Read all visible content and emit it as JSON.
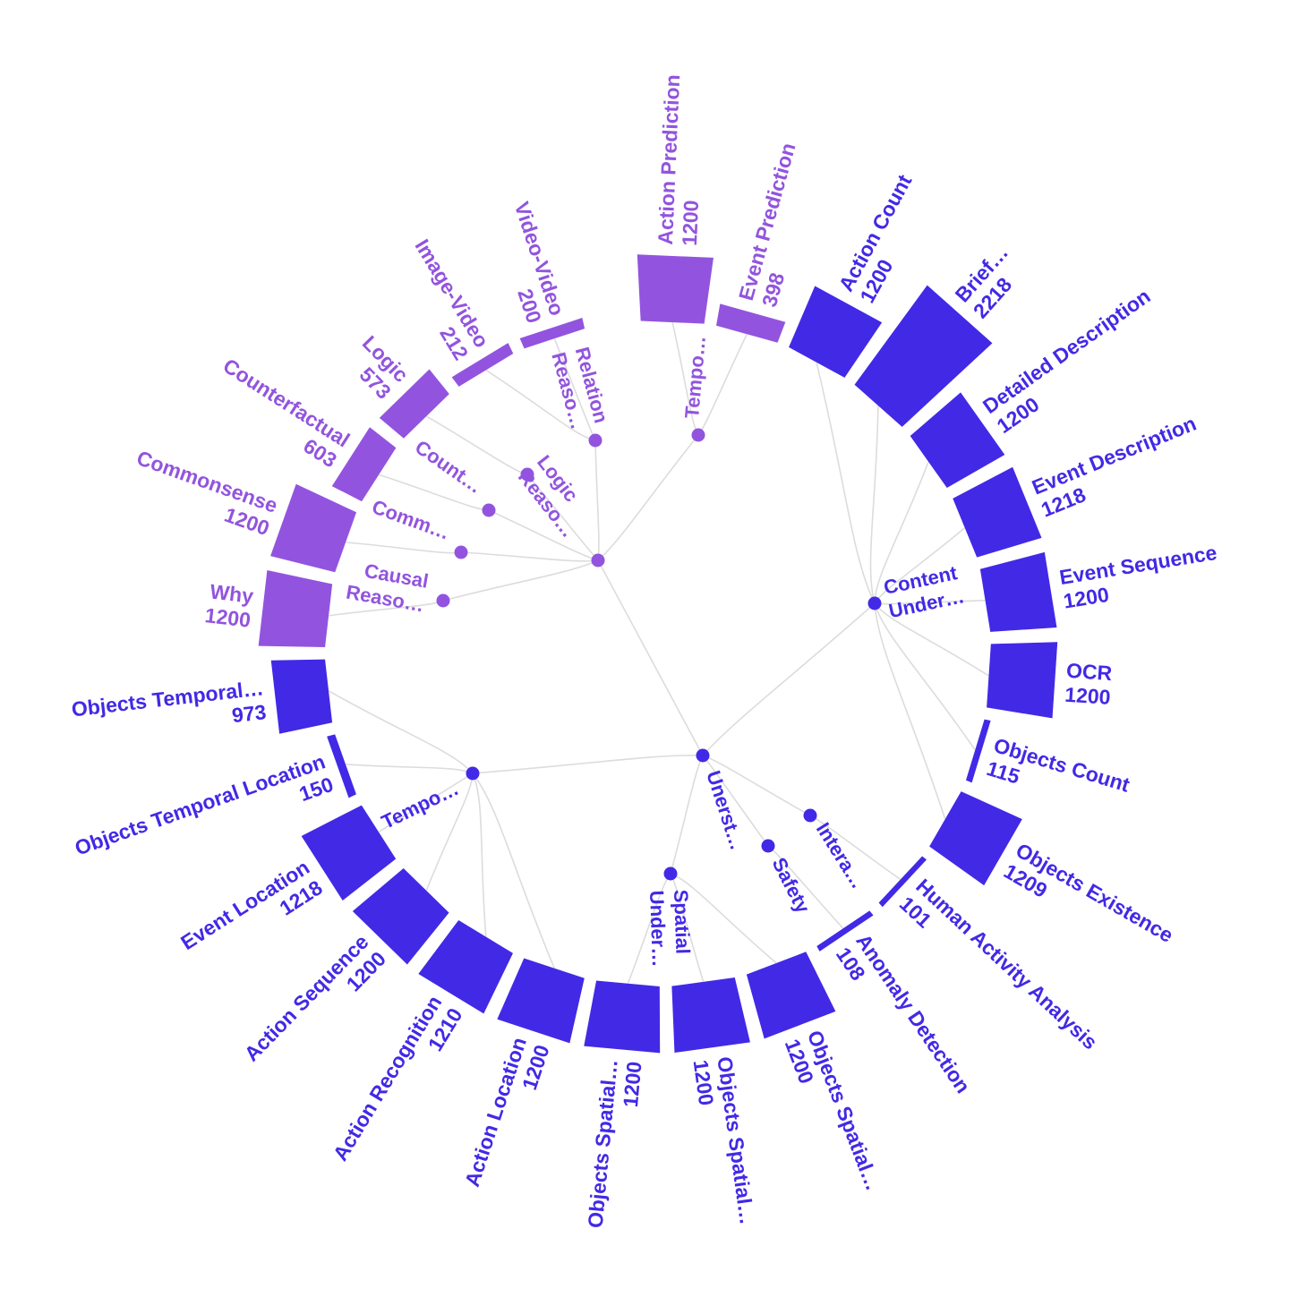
{
  "chart_data": {
    "type": "radial-tree-bar",
    "colors": {
      "reasoning": "#9254de",
      "understanding": "#4229e6",
      "link": "#dcdcdc"
    },
    "root": {
      "label": "Unerst…",
      "group": "understanding"
    },
    "groups": [
      {
        "key": "reasoning",
        "label": "Reaso…"
      },
      {
        "key": "content",
        "label": "Content\nUnder…"
      },
      {
        "key": "temporal",
        "label": "Tempo…"
      },
      {
        "key": "spatial",
        "label": "Spatial\nUnder…"
      },
      {
        "key": "safety",
        "label": "Safety"
      },
      {
        "key": "interaction",
        "label": "Intera…"
      }
    ],
    "subgroups": [
      {
        "key": "causal",
        "label": "Causal\nReaso…",
        "parent": "reasoning"
      },
      {
        "key": "commonsense",
        "label": "Comm…",
        "parent": "reasoning"
      },
      {
        "key": "counterfactual",
        "label": "Count…",
        "parent": "reasoning"
      },
      {
        "key": "logic",
        "label": "Logic\nReaso…",
        "parent": "reasoning"
      },
      {
        "key": "relation",
        "label": "Relation\nReaso…",
        "parent": "reasoning"
      },
      {
        "key": "temporal_r",
        "label": "Tempo…",
        "parent": "reasoning"
      }
    ],
    "leaves": [
      {
        "label": "Action Prediction",
        "value": 1200,
        "parent": "temporal_r"
      },
      {
        "label": "Event Prediction",
        "value": 398,
        "parent": "temporal_r"
      },
      {
        "label": "Action Count",
        "value": 1200,
        "parent": "content"
      },
      {
        "label": "Brief…",
        "value": 2218,
        "parent": "content"
      },
      {
        "label": "Detailed Description",
        "value": 1200,
        "parent": "content"
      },
      {
        "label": "Event Description",
        "value": 1218,
        "parent": "content"
      },
      {
        "label": "Event Sequence",
        "value": 1200,
        "parent": "content"
      },
      {
        "label": "OCR",
        "value": 1200,
        "parent": "content"
      },
      {
        "label": "Objects Count",
        "value": 115,
        "parent": "content"
      },
      {
        "label": "Objects Existence",
        "value": 1209,
        "parent": "content"
      },
      {
        "label": "Human Activity Analysis",
        "value": 101,
        "parent": "interaction"
      },
      {
        "label": "Anomaly Detection",
        "value": 108,
        "parent": "safety"
      },
      {
        "label": "Objects Spatial…",
        "value": 1200,
        "parent": "spatial"
      },
      {
        "label": "Objects Spatial…",
        "value": 1200,
        "parent": "spatial"
      },
      {
        "label": "Objects Spatial…",
        "value": 1200,
        "parent": "spatial"
      },
      {
        "label": "Action Location",
        "value": 1200,
        "parent": "temporal"
      },
      {
        "label": "Action Recognition",
        "value": 1210,
        "parent": "temporal"
      },
      {
        "label": "Action Sequence",
        "value": 1200,
        "parent": "temporal"
      },
      {
        "label": "Event Location",
        "value": 1218,
        "parent": "temporal"
      },
      {
        "label": "Objects Temporal Location",
        "value": 150,
        "parent": "temporal"
      },
      {
        "label": "Objects Temporal…",
        "value": 973,
        "parent": "temporal"
      },
      {
        "label": "Why",
        "value": 1200,
        "parent": "causal"
      },
      {
        "label": "Commonsense",
        "value": 1200,
        "parent": "commonsense"
      },
      {
        "label": "Counterfactual",
        "value": 603,
        "parent": "counterfactual"
      },
      {
        "label": "Logic",
        "value": 573,
        "parent": "logic"
      },
      {
        "label": "Image-Video",
        "value": 212,
        "parent": "relation"
      },
      {
        "label": "Video-Video",
        "value": 200,
        "parent": "relation"
      }
    ]
  }
}
